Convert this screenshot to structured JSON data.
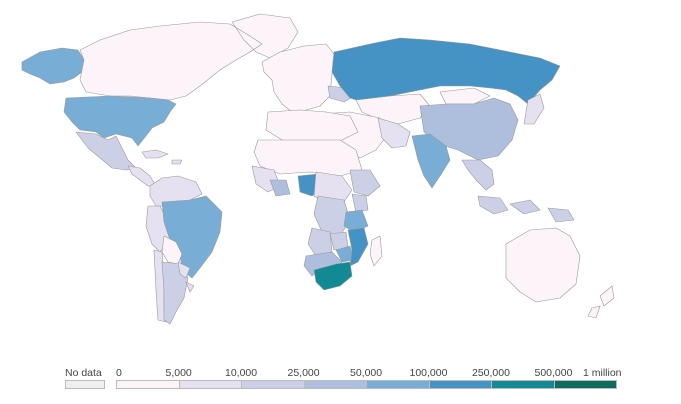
{
  "map": {
    "palette": {
      "no_data": "#efefef",
      "b0": "#fcf4f8",
      "b1": "#e6e1f0",
      "b2": "#ccd0e6",
      "b3": "#aebfde",
      "b4": "#78aed6",
      "b5": "#4493c4",
      "b6": "#138a93",
      "b7": "#0f6b5c",
      "line": "#999999"
    },
    "regions": [
      {
        "name": "alaska",
        "bin": "b4"
      },
      {
        "name": "canada-greenland",
        "bin": "b0"
      },
      {
        "name": "usa",
        "bin": "b4"
      },
      {
        "name": "mexico",
        "bin": "b2"
      },
      {
        "name": "central-america",
        "bin": "b1"
      },
      {
        "name": "caribbean",
        "bin": "b1"
      },
      {
        "name": "colombia-venezuela",
        "bin": "b1"
      },
      {
        "name": "peru",
        "bin": "b1"
      },
      {
        "name": "brazil",
        "bin": "b4"
      },
      {
        "name": "bolivia",
        "bin": "b0"
      },
      {
        "name": "chile",
        "bin": "b1"
      },
      {
        "name": "argentina",
        "bin": "b2"
      },
      {
        "name": "paraguay-uruguay",
        "bin": "b1"
      },
      {
        "name": "europe",
        "bin": "b0"
      },
      {
        "name": "ukraine",
        "bin": "b2"
      },
      {
        "name": "russia",
        "bin": "b5"
      },
      {
        "name": "kazakhstan-central-asia",
        "bin": "b0"
      },
      {
        "name": "middle-east",
        "bin": "b0"
      },
      {
        "name": "iran",
        "bin": "b1"
      },
      {
        "name": "china",
        "bin": "b3"
      },
      {
        "name": "mongolia",
        "bin": "b0"
      },
      {
        "name": "india",
        "bin": "b4"
      },
      {
        "name": "southeast-asia",
        "bin": "b2"
      },
      {
        "name": "indonesia",
        "bin": "b2"
      },
      {
        "name": "japan",
        "bin": "b1"
      },
      {
        "name": "australia",
        "bin": "b0"
      },
      {
        "name": "north-africa",
        "bin": "b0"
      },
      {
        "name": "sahel",
        "bin": "b0"
      },
      {
        "name": "west-africa",
        "bin": "b1"
      },
      {
        "name": "ghana-ivory-coast",
        "bin": "b3"
      },
      {
        "name": "nigeria",
        "bin": "b5"
      },
      {
        "name": "central-africa",
        "bin": "b1"
      },
      {
        "name": "drc",
        "bin": "b2"
      },
      {
        "name": "ethiopia",
        "bin": "b2"
      },
      {
        "name": "kenya",
        "bin": "b2"
      },
      {
        "name": "tanzania",
        "bin": "b4"
      },
      {
        "name": "angola",
        "bin": "b2"
      },
      {
        "name": "zambia",
        "bin": "b2"
      },
      {
        "name": "malawi-zimbabwe",
        "bin": "b4"
      },
      {
        "name": "mozambique",
        "bin": "b5"
      },
      {
        "name": "namibia-botswana",
        "bin": "b3"
      },
      {
        "name": "south-africa",
        "bin": "b6"
      },
      {
        "name": "madagascar",
        "bin": "b0"
      },
      {
        "name": "new-zealand",
        "bin": "b0"
      }
    ]
  },
  "legend": {
    "no_data_label": "No data",
    "ticks": [
      "0",
      "5,000",
      "10,000",
      "25,000",
      "50,000",
      "100,000",
      "250,000",
      "500,000",
      "1 million"
    ],
    "bins": [
      "b0",
      "b1",
      "b2",
      "b3",
      "b4",
      "b5",
      "b6",
      "b7"
    ]
  }
}
